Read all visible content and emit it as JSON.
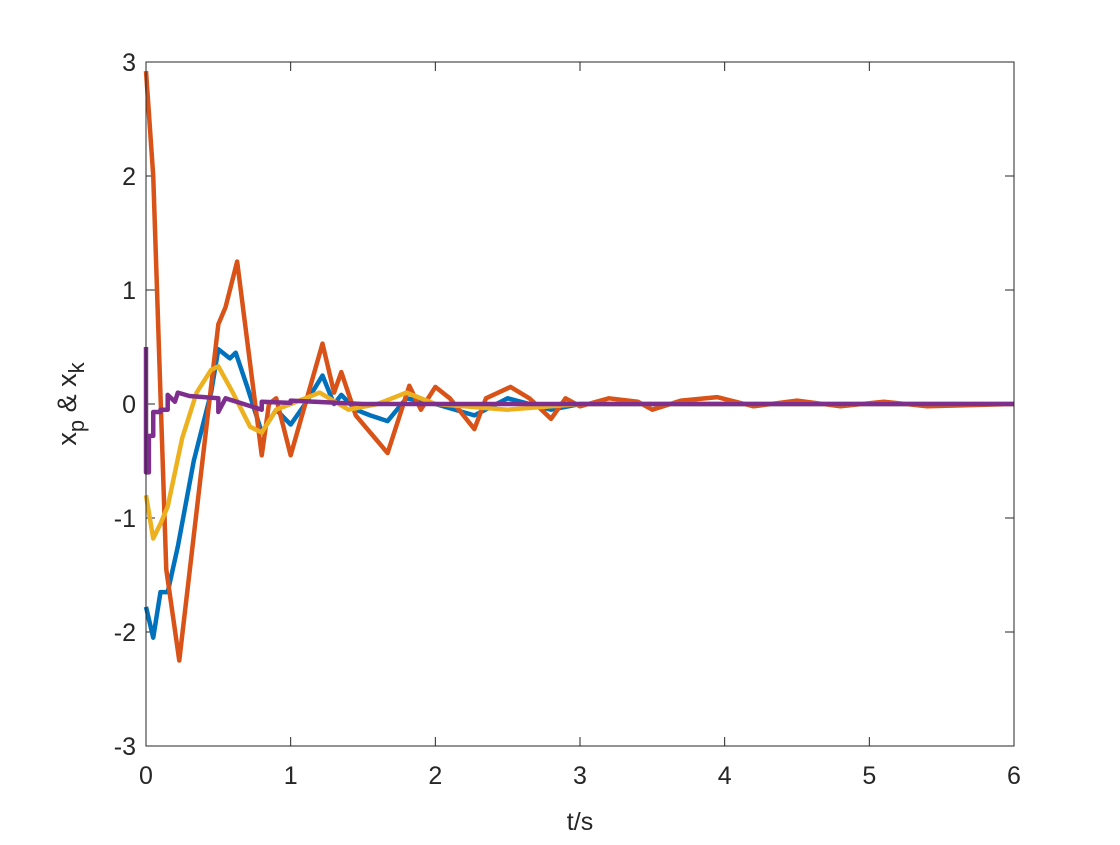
{
  "chart_data": {
    "type": "line",
    "xlabel": "t/s",
    "ylabel": [
      "x",
      "p",
      " & x",
      "k"
    ],
    "xlim": [
      0,
      6
    ],
    "xticks": [
      0,
      1,
      2,
      3,
      4,
      5,
      6
    ],
    "ylim": [
      -3,
      3
    ],
    "yticks": [
      -3,
      -2,
      -1,
      0,
      1,
      2,
      3
    ],
    "grid": false,
    "series": [
      {
        "color": "#0072BD",
        "x": [
          0,
          0.05,
          0.1,
          0.15,
          0.22,
          0.33,
          0.45,
          0.5,
          0.58,
          0.62,
          0.7,
          0.8,
          0.9,
          1.0,
          1.1,
          1.22,
          1.3,
          1.35,
          1.45,
          1.55,
          1.67,
          1.8,
          2.0,
          2.27,
          2.5,
          2.8,
          3.0,
          6.0
        ],
        "values": [
          -1.78,
          -2.05,
          -1.65,
          -1.65,
          -1.25,
          -0.5,
          0.1,
          0.48,
          0.4,
          0.45,
          0.15,
          -0.25,
          -0.05,
          -0.18,
          0.0,
          0.25,
          0.0,
          0.08,
          -0.05,
          -0.1,
          -0.15,
          0.05,
          0.0,
          -0.1,
          0.05,
          -0.05,
          0.0,
          0.0
        ]
      },
      {
        "color": "#D95319",
        "x": [
          0,
          0.05,
          0.14,
          0.23,
          0.5,
          0.55,
          0.63,
          0.8,
          0.85,
          0.9,
          1.0,
          1.22,
          1.3,
          1.35,
          1.45,
          1.67,
          1.82,
          1.9,
          2.0,
          2.1,
          2.27,
          2.35,
          2.52,
          2.65,
          2.8,
          2.9,
          3.0,
          3.2,
          3.4,
          3.5,
          3.7,
          3.95,
          4.2,
          4.5,
          4.8,
          5.1,
          5.4,
          6.0
        ],
        "values": [
          2.92,
          2.0,
          -1.45,
          -2.25,
          0.7,
          0.85,
          1.25,
          -0.45,
          0.0,
          0.05,
          -0.45,
          0.53,
          0.1,
          0.28,
          -0.1,
          -0.43,
          0.16,
          -0.05,
          0.15,
          0.05,
          -0.22,
          0.05,
          0.15,
          0.05,
          -0.13,
          0.05,
          -0.02,
          0.05,
          0.02,
          -0.05,
          0.03,
          0.06,
          -0.02,
          0.03,
          -0.02,
          0.02,
          -0.02,
          0.0
        ]
      },
      {
        "color": "#EDB120",
        "x": [
          0,
          0.05,
          0.1,
          0.15,
          0.25,
          0.35,
          0.45,
          0.5,
          0.6,
          0.72,
          0.8,
          0.9,
          1.0,
          1.2,
          1.4,
          1.6,
          1.8,
          2.0,
          2.5,
          3.0,
          6.0
        ],
        "values": [
          -0.8,
          -1.18,
          -1.05,
          -0.9,
          -0.3,
          0.1,
          0.3,
          0.33,
          0.1,
          -0.2,
          -0.25,
          -0.05,
          0.0,
          0.1,
          -0.05,
          0.0,
          0.1,
          0.0,
          -0.05,
          0.0,
          0.0
        ]
      },
      {
        "color": "#7E2F8E",
        "x": [
          0,
          0,
          0.02,
          0.02,
          0.05,
          0.05,
          0.1,
          0.1,
          0.15,
          0.15,
          0.2,
          0.22,
          0.3,
          0.5,
          0.5,
          0.55,
          0.8,
          0.8,
          1.0,
          1.0,
          1.5,
          6.0
        ],
        "values": [
          0.5,
          -0.6,
          -0.6,
          -0.28,
          -0.28,
          -0.07,
          -0.07,
          -0.05,
          -0.05,
          0.08,
          0.02,
          0.1,
          0.07,
          0.05,
          -0.07,
          0.05,
          -0.05,
          0.02,
          0.01,
          0.03,
          0.0,
          0.0
        ]
      }
    ]
  }
}
